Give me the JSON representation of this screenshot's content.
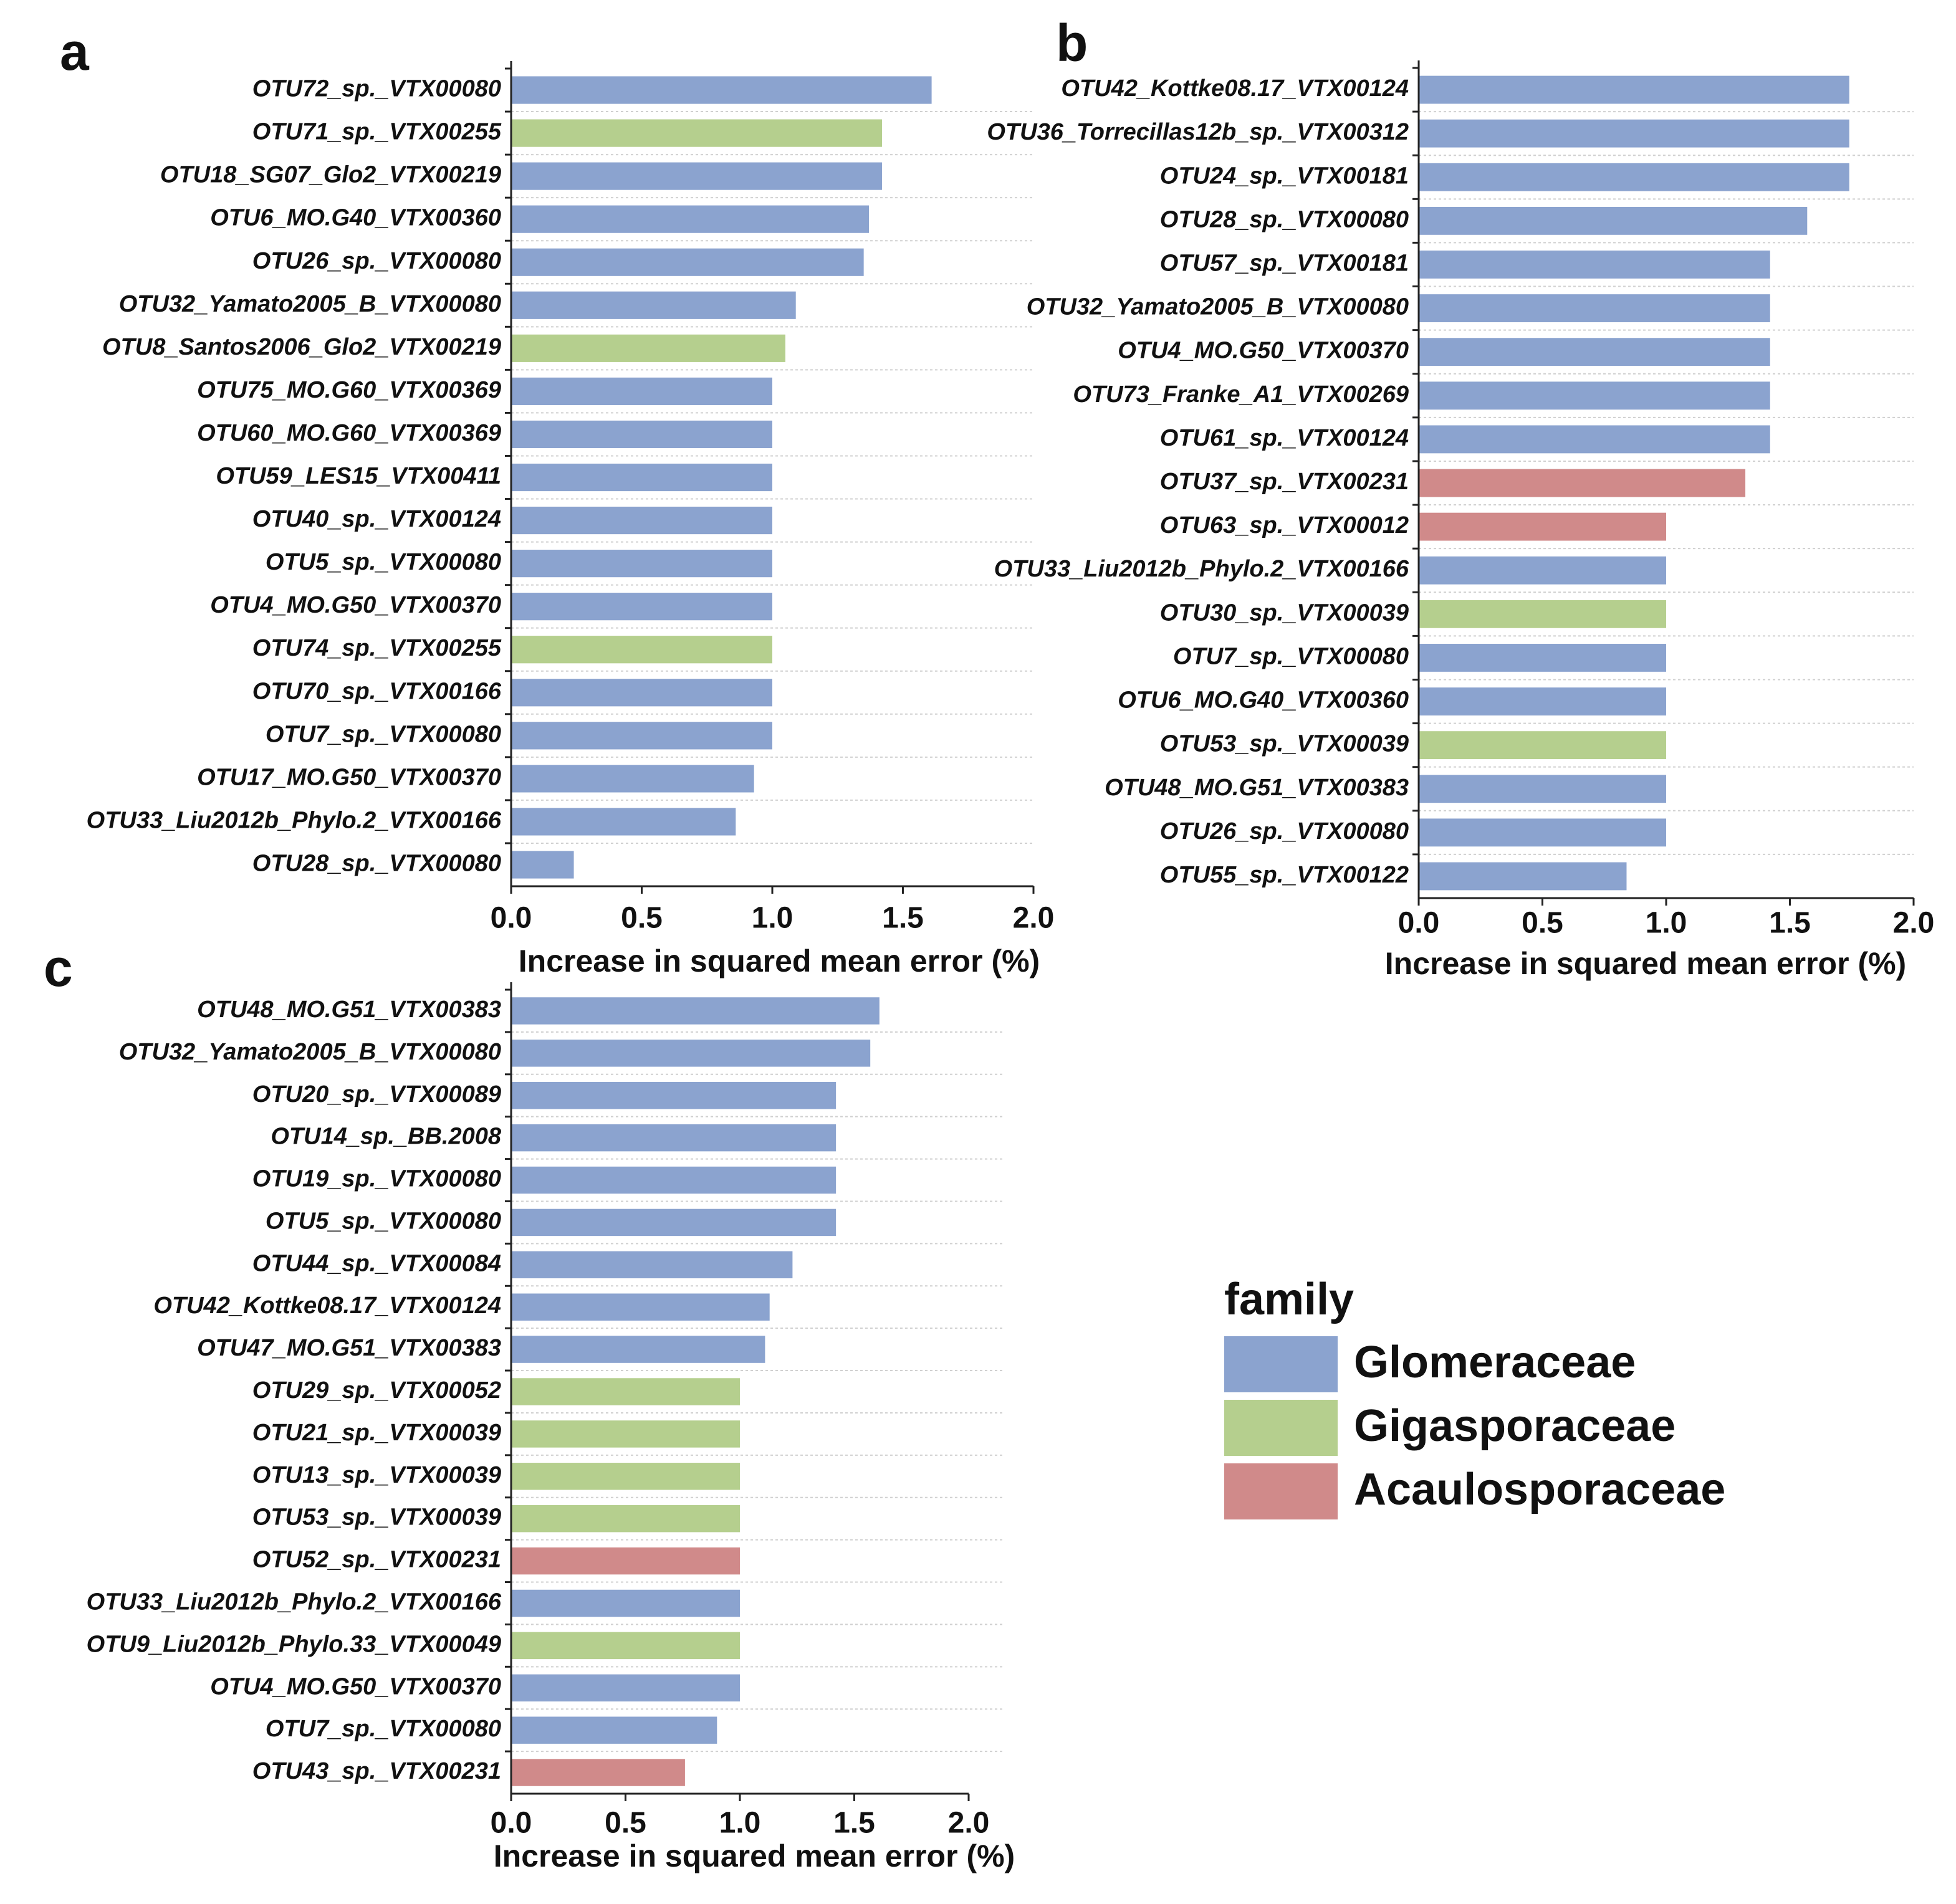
{
  "chart_data": [
    {
      "type": "bar",
      "orientation": "horizontal",
      "panel_label": "a",
      "xlabel": "Increase in squared mean error (%)",
      "categories": [
        "OTU72_sp._VTX00080",
        "OTU71_sp._VTX00255",
        "OTU18_SG07_Glo2_VTX00219",
        "OTU6_MO.G40_VTX00360",
        "OTU26_sp._VTX00080",
        "OTU32_Yamato2005_B_VTX00080",
        "OTU8_Santos2006_Glo2_VTX00219",
        "OTU75_MO.G60_VTX00369",
        "OTU60_MO.G60_VTX00369",
        "OTU59_LES15_VTX00411",
        "OTU40_sp._VTX00124",
        "OTU5_sp._VTX00080",
        "OTU4_MO.G50_VTX00370",
        "OTU74_sp._VTX00255",
        "OTU70_sp._VTX00166",
        "OTU7_sp._VTX00080",
        "OTU17_MO.G50_VTX00370",
        "OTU33_Liu2012b_Phylo.2_VTX00166",
        "OTU28_sp._VTX00080"
      ],
      "values": [
        1.61,
        1.42,
        1.42,
        1.37,
        1.35,
        1.09,
        1.05,
        1.0,
        1.0,
        1.0,
        1.0,
        1.0,
        1.0,
        1.0,
        1.0,
        1.0,
        0.93,
        0.86,
        0.24
      ],
      "colors": [
        "#8ba3cf",
        "#b5cf8e",
        "#8ba3cf",
        "#8ba3cf",
        "#8ba3cf",
        "#8ba3cf",
        "#b5cf8e",
        "#8ba3cf",
        "#8ba3cf",
        "#8ba3cf",
        "#8ba3cf",
        "#8ba3cf",
        "#8ba3cf",
        "#b5cf8e",
        "#8ba3cf",
        "#8ba3cf",
        "#8ba3cf",
        "#8ba3cf",
        "#8ba3cf"
      ],
      "xlim": [
        0,
        2
      ],
      "xticks": [
        {
          "value": 0,
          "label": "0.0"
        },
        {
          "value": 0.5,
          "label": "0.5"
        },
        {
          "value": 1,
          "label": "1.0"
        },
        {
          "value": 1.5,
          "label": "1.5"
        },
        {
          "value": 2,
          "label": "2.0"
        }
      ]
    },
    {
      "type": "bar",
      "orientation": "horizontal",
      "panel_label": "b",
      "xlabel": "Increase in squared mean error (%)",
      "categories": [
        "OTU42_Kottke08.17_VTX00124",
        "OTU36_Torrecillas12b_sp._VTX00312",
        "OTU24_sp._VTX00181",
        "OTU28_sp._VTX00080",
        "OTU57_sp._VTX00181",
        "OTU32_Yamato2005_B_VTX00080",
        "OTU4_MO.G50_VTX00370",
        "OTU73_Franke_A1_VTX00269",
        "OTU61_sp._VTX00124",
        "OTU37_sp._VTX00231",
        "OTU63_sp._VTX00012",
        "OTU33_Liu2012b_Phylo.2_VTX00166",
        "OTU30_sp._VTX00039",
        "OTU7_sp._VTX00080",
        "OTU6_MO.G40_VTX00360",
        "OTU53_sp._VTX00039",
        "OTU48_MO.G51_VTX00383",
        "OTU26_sp._VTX00080",
        "OTU55_sp._VTX00122"
      ],
      "values": [
        1.74,
        1.74,
        1.74,
        1.57,
        1.42,
        1.42,
        1.42,
        1.42,
        1.42,
        1.32,
        1.0,
        1.0,
        1.0,
        1.0,
        1.0,
        1.0,
        1.0,
        1.0,
        0.84
      ],
      "colors": [
        "#8ba3cf",
        "#8ba3cf",
        "#8ba3cf",
        "#8ba3cf",
        "#8ba3cf",
        "#8ba3cf",
        "#8ba3cf",
        "#8ba3cf",
        "#8ba3cf",
        "#d08a8a",
        "#d08a8a",
        "#8ba3cf",
        "#b5cf8e",
        "#8ba3cf",
        "#8ba3cf",
        "#b5cf8e",
        "#8ba3cf",
        "#8ba3cf",
        "#8ba3cf"
      ],
      "xlim": [
        0,
        2
      ],
      "xticks": [
        {
          "value": 0,
          "label": "0.0"
        },
        {
          "value": 0.5,
          "label": "0.5"
        },
        {
          "value": 1,
          "label": "1.0"
        },
        {
          "value": 1.5,
          "label": "1.5"
        },
        {
          "value": 2,
          "label": "2.0"
        }
      ]
    },
    {
      "type": "bar",
      "orientation": "horizontal",
      "panel_label": "c",
      "xlabel": "Increase in squared mean error (%)",
      "categories": [
        "OTU48_MO.G51_VTX00383",
        "OTU32_Yamato2005_B_VTX00080",
        "OTU20_sp._VTX00089",
        "OTU14_sp._BB.2008",
        "OTU19_sp._VTX00080",
        "OTU5_sp._VTX00080",
        "OTU44_sp._VTX00084",
        "OTU42_Kottke08.17_VTX00124",
        "OTU47_MO.G51_VTX00383",
        "OTU29_sp._VTX00052",
        "OTU21_sp._VTX00039",
        "OTU13_sp._VTX00039",
        "OTU53_sp._VTX00039",
        "OTU52_sp._VTX00231",
        "OTU33_Liu2012b_Phylo.2_VTX00166",
        "OTU9_Liu2012b_Phylo.33_VTX00049",
        "OTU4_MO.G50_VTX00370",
        "OTU7_sp._VTX00080",
        "OTU43_sp._VTX00231"
      ],
      "values": [
        1.61,
        1.57,
        1.42,
        1.42,
        1.42,
        1.42,
        1.23,
        1.13,
        1.11,
        1.0,
        1.0,
        1.0,
        1.0,
        1.0,
        1.0,
        1.0,
        1.0,
        0.9,
        0.76
      ],
      "colors": [
        "#8ba3cf",
        "#8ba3cf",
        "#8ba3cf",
        "#8ba3cf",
        "#8ba3cf",
        "#8ba3cf",
        "#8ba3cf",
        "#8ba3cf",
        "#8ba3cf",
        "#b5cf8e",
        "#b5cf8e",
        "#b5cf8e",
        "#b5cf8e",
        "#d08a8a",
        "#8ba3cf",
        "#b5cf8e",
        "#8ba3cf",
        "#8ba3cf",
        "#d08a8a"
      ],
      "xlim": [
        0,
        2
      ],
      "xticks": [
        {
          "value": 0,
          "label": "0.0"
        },
        {
          "value": 0.5,
          "label": "0.5"
        },
        {
          "value": 1,
          "label": "1.0"
        },
        {
          "value": 1.5,
          "label": "1.5"
        },
        {
          "value": 2,
          "label": "2.0"
        }
      ]
    }
  ],
  "legend": {
    "title": "family",
    "items": [
      {
        "name": "Glomeraceae",
        "color": "#8ba3cf"
      },
      {
        "name": "Gigasporaceae",
        "color": "#b5cf8e"
      },
      {
        "name": "Acaulosporaceae",
        "color": "#d08a8a"
      }
    ]
  }
}
